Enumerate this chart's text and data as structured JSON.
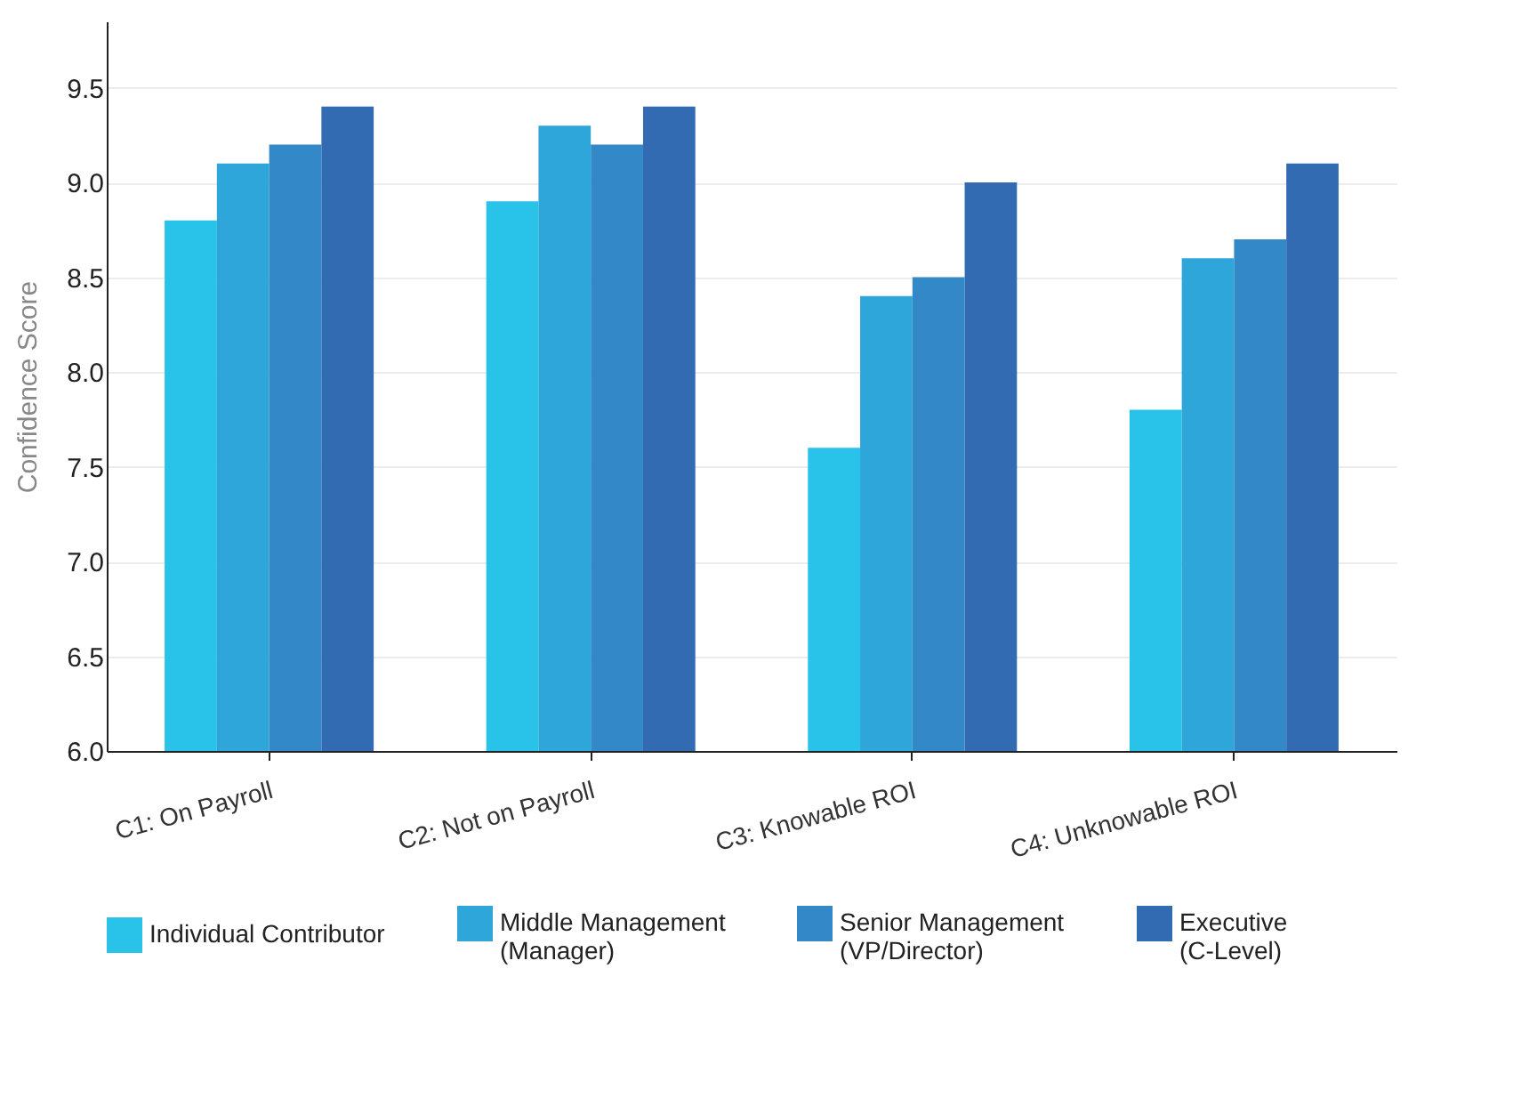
{
  "chart_data": {
    "type": "bar",
    "ylabel": "Confidence Score",
    "categories": [
      "C1: On Payroll",
      "C2: Not on Payroll",
      "C3: Knowable ROI",
      "C4: Unknowable ROI"
    ],
    "series": [
      {
        "name": "Individual Contributor",
        "color": "#29c3ea",
        "values": [
          8.8,
          8.9,
          7.6,
          7.8
        ]
      },
      {
        "name": "Middle Management (Manager)",
        "color": "#2ea6da",
        "values": [
          9.1,
          9.3,
          8.4,
          8.6
        ]
      },
      {
        "name": "Senior Management (VP/Director)",
        "color": "#3389c8",
        "values": [
          9.2,
          9.2,
          8.5,
          8.7
        ]
      },
      {
        "name": "Executive (C-Level)",
        "color": "#336bb3",
        "values": [
          9.4,
          9.4,
          9.0,
          9.1
        ]
      }
    ],
    "ylim": [
      6,
      9.85
    ],
    "yticks": [
      {
        "value": 6,
        "label": "6.0"
      },
      6.5,
      {
        "value": 7,
        "label": "7.0"
      },
      7.5,
      {
        "value": 8,
        "label": "8.0"
      },
      8.5,
      {
        "value": 9,
        "label": "9.0"
      },
      9.5
    ],
    "grid": "y",
    "legend": "bottom"
  }
}
